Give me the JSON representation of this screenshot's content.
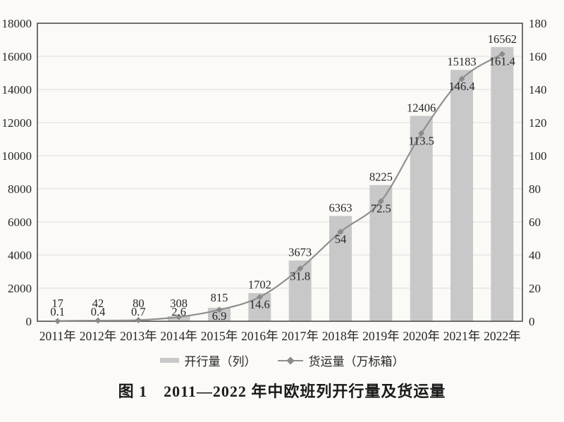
{
  "chart_data": {
    "type": "bar+line",
    "categories": [
      "2011年",
      "2012年",
      "2013年",
      "2014年",
      "2015年",
      "2016年",
      "2017年",
      "2018年",
      "2019年",
      "2020年",
      "2021年",
      "2022年"
    ],
    "series": [
      {
        "name": "开行量（列）",
        "type": "bar",
        "axis": "left",
        "values": [
          17,
          42,
          80,
          308,
          815,
          1702,
          3673,
          6363,
          8225,
          12406,
          15183,
          16562
        ]
      },
      {
        "name": "货运量（万标箱）",
        "type": "line",
        "axis": "right",
        "values": [
          0.1,
          0.4,
          0.7,
          2.6,
          6.9,
          14.6,
          31.8,
          54,
          72.5,
          113.5,
          146.4,
          161.4
        ]
      }
    ],
    "left_axis": {
      "min": 0,
      "max": 18000,
      "step": 2000
    },
    "right_axis": {
      "min": 0,
      "max": 180,
      "step": 20
    },
    "grid": true,
    "data_labels": true,
    "legend_position": "bottom",
    "title": "图 1　2011—2022 年中欧班列开行量及货运量"
  },
  "legend": {
    "items": [
      {
        "label": "开行量（列）",
        "swatch": "bar"
      },
      {
        "label": "货运量（万标箱）",
        "swatch": "line-diamond"
      }
    ]
  },
  "caption": "图 1　2011—2022 年中欧班列开行量及货运量",
  "colors": {
    "background": "#fbfaf7",
    "bar": "#c8c8c8",
    "line": "#8f8f8f",
    "marker": "#8a8a8a",
    "grid": "#dcdcdc",
    "axis": "#4d4d4d",
    "text": "#262626"
  }
}
